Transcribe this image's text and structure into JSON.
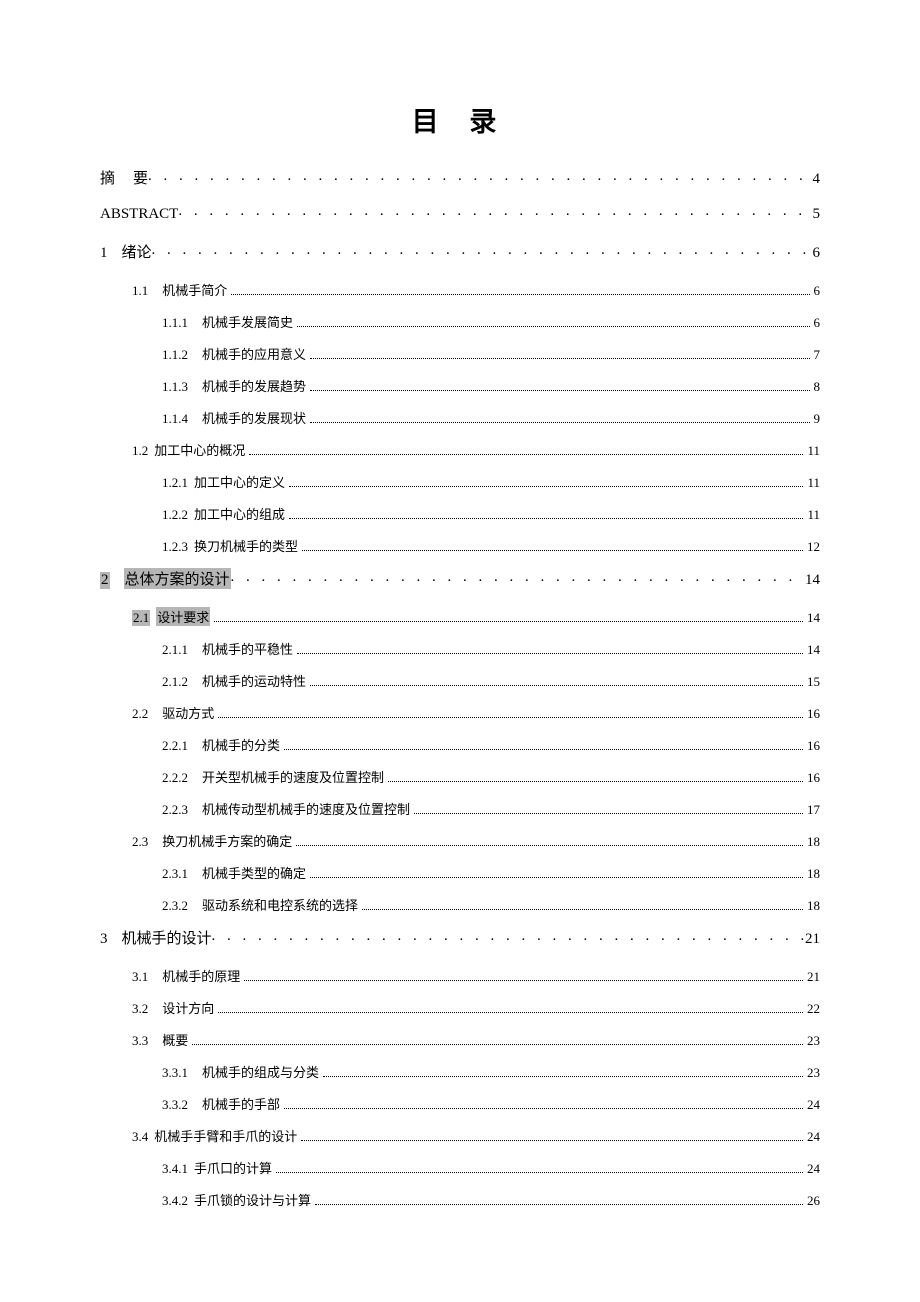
{
  "title": "目 录",
  "entries": [
    {
      "level": 1,
      "num": "摘",
      "label": "要",
      "page": "4",
      "highlight": false,
      "gap": 18
    },
    {
      "level": 1,
      "num": "",
      "label": "ABSTRACT",
      "page": "5",
      "highlight": false
    },
    {
      "level": 1,
      "num": "1",
      "label": "绪论",
      "page": "6",
      "highlight": false
    },
    {
      "level": 2,
      "num": "1.1",
      "label": "机械手简介",
      "page": "6",
      "highlight": false
    },
    {
      "level": 3,
      "num": "1.1.1",
      "label": "机械手发展简史",
      "page": "6",
      "highlight": false
    },
    {
      "level": 3,
      "num": "1.1.2",
      "label": "机械手的应用意义",
      "page": "7",
      "highlight": false
    },
    {
      "level": 3,
      "num": "1.1.3",
      "label": "机械手的发展趋势",
      "page": "8",
      "highlight": false
    },
    {
      "level": 3,
      "num": "1.1.4",
      "label": "机械手的发展现状",
      "page": "9",
      "highlight": false
    },
    {
      "level": 2,
      "num": "1.2",
      "label": "加工中心的概况",
      "page": "11",
      "highlight": false,
      "gap": 6
    },
    {
      "level": 3,
      "num": "1.2.1",
      "label": "加工中心的定义",
      "page": "11",
      "highlight": false,
      "gap": 6
    },
    {
      "level": 3,
      "num": "1.2.2",
      "label": "加工中心的组成",
      "page": "11",
      "highlight": false,
      "gap": 6
    },
    {
      "level": 3,
      "num": "1.2.3",
      "label": "换刀机械手的类型",
      "page": "12",
      "highlight": false,
      "gap": 6
    },
    {
      "level": 1,
      "num": "2",
      "label": "总体方案的设计",
      "page": "14",
      "highlight": true
    },
    {
      "level": 2,
      "num": "2.1",
      "label": "设计要求",
      "page": "14",
      "highlight": true,
      "gap": 6
    },
    {
      "level": 3,
      "num": "2.1.1",
      "label": "机械手的平稳性",
      "page": "14",
      "highlight": false
    },
    {
      "level": 3,
      "num": "2.1.2",
      "label": "机械手的运动特性",
      "page": "15",
      "highlight": false
    },
    {
      "level": 2,
      "num": "2.2",
      "label": "驱动方式",
      "page": "16",
      "highlight": false
    },
    {
      "level": 3,
      "num": "2.2.1",
      "label": "机械手的分类",
      "page": "16",
      "highlight": false
    },
    {
      "level": 3,
      "num": "2.2.2",
      "label": "开关型机械手的速度及位置控制",
      "page": "16",
      "highlight": false
    },
    {
      "level": 3,
      "num": "2.2.3",
      "label": "机械传动型机械手的速度及位置控制",
      "page": "17",
      "highlight": false
    },
    {
      "level": 2,
      "num": "2.3",
      "label": "换刀机械手方案的确定",
      "page": "18",
      "highlight": false
    },
    {
      "level": 3,
      "num": "2.3.1",
      "label": "机械手类型的确定",
      "page": "18",
      "highlight": false
    },
    {
      "level": 3,
      "num": "2.3.2",
      "label": "驱动系统和电控系统的选择",
      "page": "18",
      "highlight": false
    },
    {
      "level": 1,
      "num": "3",
      "label": "机械手的设计",
      "page": "21",
      "highlight": false
    },
    {
      "level": 2,
      "num": "3.1",
      "label": "机械手的原理",
      "page": "21",
      "highlight": false
    },
    {
      "level": 2,
      "num": "3.2",
      "label": "设计方向",
      "page": "22",
      "highlight": false
    },
    {
      "level": 2,
      "num": "3.3",
      "label": "概要",
      "page": "23",
      "highlight": false
    },
    {
      "level": 3,
      "num": "3.3.1",
      "label": "机械手的组成与分类",
      "page": "23",
      "highlight": false
    },
    {
      "level": 3,
      "num": "3.3.2",
      "label": "机械手的手部",
      "page": "24",
      "highlight": false
    },
    {
      "level": 2,
      "num": "3.4",
      "label": "机械手手臂和手爪的设计",
      "page": "24",
      "highlight": false,
      "gap": 6
    },
    {
      "level": 3,
      "num": "3.4.1",
      "label": "手爪口的计算",
      "page": "24",
      "highlight": false,
      "gap": 6
    },
    {
      "level": 3,
      "num": "3.4.2",
      "label": "手爪锁的设计与计算",
      "page": "26",
      "highlight": false,
      "gap": 6
    }
  ],
  "colors": {
    "text": "#000000",
    "bg": "#ffffff",
    "highlight": "#b6b6b6"
  }
}
